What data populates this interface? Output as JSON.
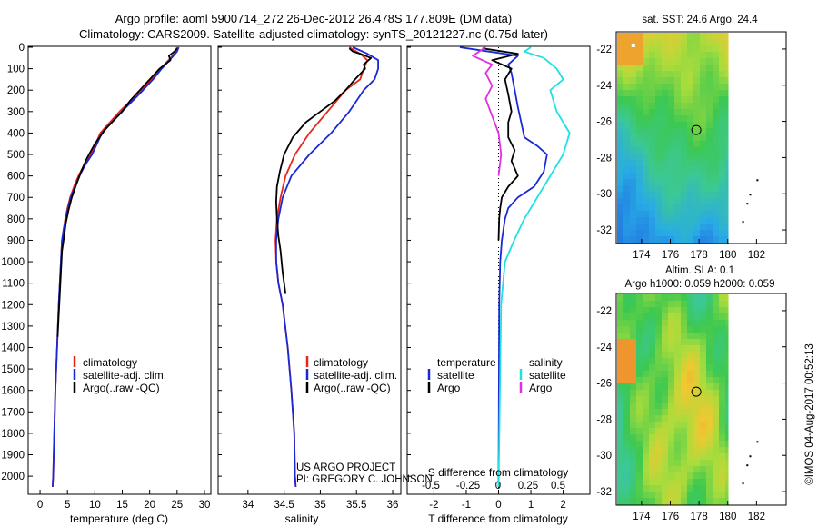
{
  "header": {
    "title_line1": "Argo profile: aoml 5900714_272 26-Dec-2012 26.478S 177.809E (DM data)",
    "title_line2": "Climatology: CARS2009. Satellite-adjusted climatology: synTS_20121227.nc (0.75d later)"
  },
  "colors": {
    "climatology": "#e8261a",
    "satellite": "#1a29d6",
    "argo": "#000000",
    "sal_satellite": "#20e0e0",
    "sal_argo": "#e030e0"
  },
  "chart_data": [
    {
      "type": "line",
      "panel": "temperature",
      "xlabel": "temperature (deg C)",
      "ylabel": "",
      "xlim": [
        -2,
        31
      ],
      "ylim": [
        2080,
        0
      ],
      "xticks": [
        0,
        5,
        10,
        15,
        20,
        25,
        30
      ],
      "yticks": [
        0,
        100,
        200,
        300,
        400,
        500,
        600,
        700,
        800,
        900,
        1000,
        1100,
        1200,
        1300,
        1400,
        1500,
        1600,
        1700,
        1800,
        1900,
        2000
      ],
      "legend": [
        "climatology",
        "satellite-adj. clim.",
        "Argo(..raw -QC)"
      ],
      "series": [
        {
          "name": "climatology",
          "x": [
            25.0,
            24.8,
            23.8,
            22.0,
            20.3,
            18.5,
            16.5,
            14.5,
            11.0,
            9.3,
            8.0,
            7.0,
            6.2,
            5.5,
            5.0,
            4.6,
            4.3,
            4.0,
            3.8,
            3.6,
            3.4,
            3.1,
            2.8,
            2.6,
            2.4,
            2.3
          ],
          "y": [
            0,
            20,
            50,
            100,
            150,
            200,
            250,
            300,
            400,
            500,
            550,
            600,
            650,
            700,
            750,
            800,
            850,
            900,
            1000,
            1100,
            1200,
            1400,
            1600,
            1800,
            2000,
            2050
          ]
        },
        {
          "name": "satellite-adj. clim.",
          "x": [
            25.3,
            25.0,
            24.0,
            22.2,
            20.6,
            18.8,
            16.9,
            14.9,
            11.3,
            9.5,
            8.2,
            7.2,
            6.4,
            5.6,
            5.1,
            4.7,
            4.3,
            4.0,
            3.8,
            3.6,
            3.4,
            3.1,
            2.8,
            2.6,
            2.4,
            2.3
          ],
          "y": [
            0,
            20,
            50,
            100,
            150,
            200,
            250,
            300,
            400,
            500,
            550,
            600,
            650,
            700,
            750,
            800,
            850,
            900,
            1000,
            1100,
            1200,
            1400,
            1600,
            1800,
            2000,
            2050
          ]
        },
        {
          "name": "Argo(..raw -QC)",
          "x": [
            25.0,
            24.5,
            23.5,
            23.8,
            21.8,
            20.0,
            18.2,
            16.4,
            15.0,
            12.0,
            10.0,
            8.5,
            7.5,
            6.6,
            5.8,
            5.2,
            4.7,
            4.4,
            4.0,
            3.8,
            3.6,
            3.4,
            3.2
          ],
          "y": [
            5,
            20,
            40,
            60,
            100,
            150,
            200,
            250,
            300,
            380,
            450,
            520,
            580,
            640,
            700,
            760,
            820,
            880,
            950,
            1050,
            1150,
            1250,
            1350
          ]
        }
      ]
    },
    {
      "type": "line",
      "panel": "salinity",
      "xlabel": "salinity",
      "xlim": [
        33.6,
        36.1
      ],
      "ylim": [
        2080,
        0
      ],
      "xticks": [
        34,
        34.5,
        35,
        35.5,
        36
      ],
      "legend": [
        "climatology",
        "satellite-adj. clim.",
        "Argo(..raw -QC)"
      ],
      "series": [
        {
          "name": "climatology",
          "x": [
            35.4,
            35.55,
            35.65,
            35.6,
            35.55,
            35.35,
            35.1,
            34.85,
            34.65,
            34.52,
            34.45,
            34.4,
            34.38,
            34.39,
            34.42,
            34.48,
            34.55,
            34.6,
            34.64,
            34.65,
            34.66
          ],
          "y": [
            0,
            30,
            60,
            100,
            150,
            200,
            300,
            400,
            500,
            600,
            700,
            800,
            900,
            1000,
            1100,
            1200,
            1400,
            1600,
            1800,
            2000,
            2050
          ]
        },
        {
          "name": "satellite-adj. clim.",
          "x": [
            35.45,
            35.65,
            35.8,
            35.8,
            35.75,
            35.6,
            35.4,
            35.15,
            34.85,
            34.6,
            34.48,
            34.42,
            34.39,
            34.39,
            34.42,
            34.48,
            34.55,
            34.6,
            34.64,
            34.65,
            34.66
          ],
          "y": [
            0,
            30,
            60,
            100,
            150,
            200,
            300,
            400,
            500,
            600,
            700,
            800,
            900,
            1000,
            1100,
            1200,
            1400,
            1600,
            1800,
            2000,
            2050
          ]
        },
        {
          "name": "Argo(..raw -QC)",
          "x": [
            35.4,
            35.45,
            35.55,
            35.7,
            35.6,
            35.62,
            35.48,
            35.35,
            35.2,
            35.0,
            34.8,
            34.62,
            34.5,
            34.44,
            34.4,
            34.39,
            34.4,
            34.42,
            34.45,
            34.48,
            34.52
          ],
          "y": [
            5,
            20,
            30,
            50,
            80,
            100,
            150,
            200,
            250,
            300,
            350,
            420,
            500,
            580,
            650,
            720,
            800,
            880,
            950,
            1050,
            1150
          ]
        }
      ]
    },
    {
      "type": "line",
      "panel": "difference",
      "xlabel": "T difference from climatology",
      "xlabel_top": "S difference from climatology",
      "xlim": [
        -2.8,
        2.8
      ],
      "ylim": [
        2080,
        0
      ],
      "xticks": [
        "-2",
        "-1",
        "0",
        "1",
        "2"
      ],
      "xticks_top": [
        "-0.5",
        "-0.25",
        "0",
        "0.25",
        "0.5"
      ],
      "legend_titles": [
        "temperature",
        "salinity"
      ],
      "legend": [
        "satellite",
        "Argo",
        "satellite",
        "Argo"
      ],
      "series": [
        {
          "name": "satellite",
          "x": [
            -1.2,
            -0.3,
            0.6,
            0.3,
            0.4,
            0.5,
            0.6,
            0.7,
            0.8,
            1.2,
            1.5,
            1.4,
            1.1,
            0.6,
            0.3,
            0.2,
            0.1,
            0.05,
            0.02,
            0.0
          ],
          "y": [
            0,
            20,
            40,
            80,
            120,
            200,
            280,
            350,
            420,
            460,
            500,
            580,
            650,
            700,
            750,
            800,
            900,
            1000,
            1200,
            2050
          ]
        },
        {
          "name": "Argo",
          "x": [
            -0.5,
            0.6,
            -0.2,
            0.4,
            0.2,
            0.3,
            0.4,
            0.3,
            0.3,
            0.5,
            0.4,
            0.6,
            0.3,
            0.1,
            0.05,
            0.02,
            0.0
          ],
          "y": [
            5,
            30,
            60,
            100,
            150,
            220,
            300,
            350,
            420,
            480,
            530,
            600,
            650,
            700,
            750,
            800,
            900
          ]
        },
        {
          "name": "satellite",
          "x": [
            0.25,
            0.2,
            0.35,
            0.45,
            0.5,
            0.4,
            0.45,
            0.55,
            0.5,
            0.4,
            0.3,
            0.2,
            0.12,
            0.05,
            0.02,
            0.0
          ],
          "y": [
            0,
            20,
            50,
            100,
            150,
            200,
            300,
            400,
            500,
            600,
            700,
            800,
            900,
            1000,
            1200,
            2050
          ]
        },
        {
          "name": "Argo",
          "x": [
            -0.1,
            -0.2,
            -0.05,
            -0.1,
            -0.05,
            -0.1,
            -0.05,
            0.0,
            0.02,
            0.0
          ],
          "y": [
            0,
            40,
            80,
            120,
            180,
            240,
            320,
            400,
            500,
            600
          ]
        }
      ]
    },
    {
      "type": "heatmap",
      "panel": "sst_map",
      "title": "sat. SST: 24.6  Argo: 24.4",
      "xticks": [
        174,
        176,
        178,
        180,
        182
      ],
      "yticks": [
        -22,
        -24,
        -26,
        -28,
        -30,
        -32
      ],
      "xlim": [
        172.3,
        184
      ],
      "ylim": [
        -32.7,
        -21.1
      ],
      "marker": {
        "lon": 177.809,
        "lat": -26.478
      }
    },
    {
      "type": "heatmap",
      "panel": "sla_map",
      "title": "Altim. SLA: 0.1",
      "subtitle": "Argo h1000: 0.059  h2000: 0.059",
      "xticks": [
        174,
        176,
        178,
        180,
        182
      ],
      "yticks": [
        -22,
        -24,
        -26,
        -28,
        -30,
        -32
      ],
      "xlim": [
        172.3,
        184
      ],
      "ylim": [
        -32.7,
        -21.1
      ],
      "marker": {
        "lon": 177.809,
        "lat": -26.478
      }
    }
  ],
  "annotations": {
    "project": "US ARGO PROJECT",
    "pi": "PI: GREGORY C. JOHNSON",
    "credit": "©IMOS 04-Aug-2017 00:52:13"
  }
}
